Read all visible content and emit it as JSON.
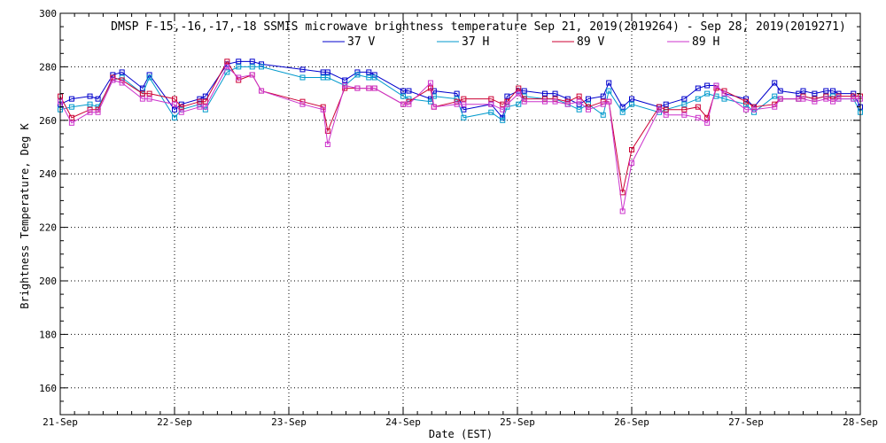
{
  "chart_data": {
    "type": "line",
    "title": "DMSP F-15,-16,-17,-18 SSMIS microwave brightness temperature Sep 21, 2019(2019264) - Sep 28, 2019(2019271)",
    "xlabel": "Date (EST)",
    "ylabel": "Brightness Temperature, Deg K",
    "xlim": [
      0,
      7
    ],
    "ylim": [
      150,
      300
    ],
    "yticks": [
      160,
      180,
      200,
      220,
      240,
      260,
      280,
      300
    ],
    "xtick_labels": [
      "21-Sep",
      "22-Sep",
      "23-Sep",
      "24-Sep",
      "25-Sep",
      "26-Sep",
      "27-Sep",
      "28-Sep"
    ],
    "grid": true,
    "legend_position": "top-center",
    "series": [
      {
        "name": "37 V",
        "color": "#0000cc",
        "x": [
          0.0,
          0.1,
          0.26,
          0.33,
          0.46,
          0.54,
          0.72,
          0.78,
          1.0,
          1.06,
          1.22,
          1.27,
          1.46,
          1.56,
          1.68,
          1.76,
          2.12,
          2.3,
          2.34,
          2.49,
          2.6,
          2.7,
          2.75,
          3.0,
          3.05,
          3.24,
          3.27,
          3.47,
          3.53,
          3.77,
          3.87,
          3.91,
          4.01,
          4.06,
          4.24,
          4.33,
          4.44,
          4.54,
          4.62,
          4.75,
          4.8,
          4.92,
          5.0,
          5.24,
          5.3,
          5.46,
          5.58,
          5.66,
          5.74,
          5.81,
          6.0,
          6.07,
          6.25,
          6.3,
          6.46,
          6.5,
          6.6,
          6.7,
          6.76,
          6.81,
          6.94,
          7.0
        ],
        "values": [
          266,
          268,
          269,
          268,
          277,
          278,
          272,
          277,
          264,
          266,
          268,
          269,
          281,
          282,
          282,
          281,
          279,
          278,
          278,
          275,
          278,
          278,
          277,
          271,
          271,
          268,
          271,
          270,
          264,
          266,
          261,
          269,
          271,
          271,
          270,
          270,
          268,
          266,
          268,
          269,
          274,
          265,
          268,
          265,
          266,
          268,
          272,
          273,
          273,
          270,
          268,
          265,
          274,
          271,
          270,
          271,
          270,
          271,
          271,
          270,
          270,
          265
        ]
      },
      {
        "name": "37 H",
        "color": "#0099cc",
        "x": [
          0.0,
          0.1,
          0.26,
          0.33,
          0.46,
          0.54,
          0.72,
          0.78,
          1.0,
          1.06,
          1.22,
          1.27,
          1.46,
          1.56,
          1.68,
          1.76,
          2.12,
          2.3,
          2.34,
          2.49,
          2.6,
          2.7,
          2.75,
          3.0,
          3.05,
          3.24,
          3.27,
          3.47,
          3.53,
          3.77,
          3.87,
          3.91,
          4.01,
          4.06,
          4.24,
          4.33,
          4.44,
          4.54,
          4.62,
          4.75,
          4.8,
          4.92,
          5.0,
          5.24,
          5.3,
          5.46,
          5.58,
          5.66,
          5.74,
          5.81,
          6.0,
          6.07,
          6.25,
          6.3,
          6.46,
          6.5,
          6.6,
          6.7,
          6.76,
          6.81,
          6.94,
          7.0
        ],
        "values": [
          264,
          265,
          266,
          265,
          275,
          276,
          270,
          276,
          261,
          264,
          266,
          264,
          278,
          280,
          280,
          280,
          276,
          276,
          276,
          273,
          277,
          276,
          276,
          269,
          268,
          267,
          269,
          268,
          261,
          263,
          260,
          265,
          266,
          269,
          268,
          268,
          266,
          264,
          266,
          262,
          271,
          263,
          266,
          263,
          264,
          266,
          268,
          270,
          269,
          268,
          266,
          263,
          269,
          268,
          268,
          269,
          268,
          269,
          269,
          268,
          268,
          263
        ]
      },
      {
        "name": "89 V",
        "color": "#cc0033",
        "x": [
          0.0,
          0.1,
          0.26,
          0.33,
          0.46,
          0.54,
          0.72,
          0.78,
          1.0,
          1.06,
          1.22,
          1.27,
          1.46,
          1.56,
          1.68,
          1.76,
          2.12,
          2.3,
          2.34,
          2.49,
          2.6,
          2.7,
          2.75,
          3.0,
          3.05,
          3.24,
          3.27,
          3.47,
          3.53,
          3.77,
          3.87,
          3.91,
          4.01,
          4.06,
          4.24,
          4.33,
          4.44,
          4.54,
          4.62,
          4.75,
          4.8,
          4.92,
          5.0,
          5.24,
          5.3,
          5.46,
          5.58,
          5.66,
          5.74,
          5.81,
          6.0,
          6.07,
          6.25,
          6.3,
          6.46,
          6.5,
          6.6,
          6.7,
          6.76,
          6.81,
          6.94,
          7.0
        ],
        "values": [
          269,
          261,
          264,
          264,
          276,
          275,
          270,
          270,
          268,
          265,
          267,
          267,
          282,
          275,
          277,
          271,
          267,
          265,
          256,
          272,
          272,
          272,
          272,
          266,
          267,
          272,
          265,
          267,
          268,
          268,
          266,
          267,
          272,
          268,
          268,
          268,
          267,
          269,
          265,
          267,
          267,
          233,
          249,
          265,
          264,
          264,
          265,
          261,
          272,
          271,
          267,
          265,
          266,
          268,
          268,
          269,
          268,
          269,
          268,
          269,
          269,
          269
        ]
      },
      {
        "name": "89 H",
        "color": "#cc33cc",
        "x": [
          0.0,
          0.1,
          0.26,
          0.33,
          0.46,
          0.54,
          0.72,
          0.78,
          1.0,
          1.06,
          1.22,
          1.27,
          1.46,
          1.56,
          1.68,
          1.76,
          2.12,
          2.3,
          2.34,
          2.49,
          2.6,
          2.7,
          2.75,
          3.0,
          3.05,
          3.24,
          3.27,
          3.47,
          3.53,
          3.77,
          3.87,
          3.91,
          4.01,
          4.06,
          4.24,
          4.33,
          4.44,
          4.54,
          4.62,
          4.75,
          4.8,
          4.92,
          5.0,
          5.24,
          5.3,
          5.46,
          5.58,
          5.66,
          5.74,
          5.81,
          6.0,
          6.07,
          6.25,
          6.3,
          6.46,
          6.5,
          6.6,
          6.7,
          6.76,
          6.81,
          6.94,
          7.0
        ],
        "values": [
          267,
          259,
          263,
          263,
          275,
          274,
          268,
          268,
          266,
          263,
          265,
          265,
          280,
          276,
          277,
          271,
          266,
          264,
          251,
          273,
          272,
          272,
          272,
          266,
          266,
          274,
          265,
          266,
          266,
          266,
          264,
          266,
          270,
          267,
          267,
          267,
          266,
          267,
          264,
          266,
          267,
          226,
          244,
          264,
          262,
          262,
          261,
          259,
          273,
          270,
          264,
          264,
          265,
          268,
          268,
          268,
          267,
          268,
          267,
          268,
          268,
          268
        ]
      }
    ]
  }
}
